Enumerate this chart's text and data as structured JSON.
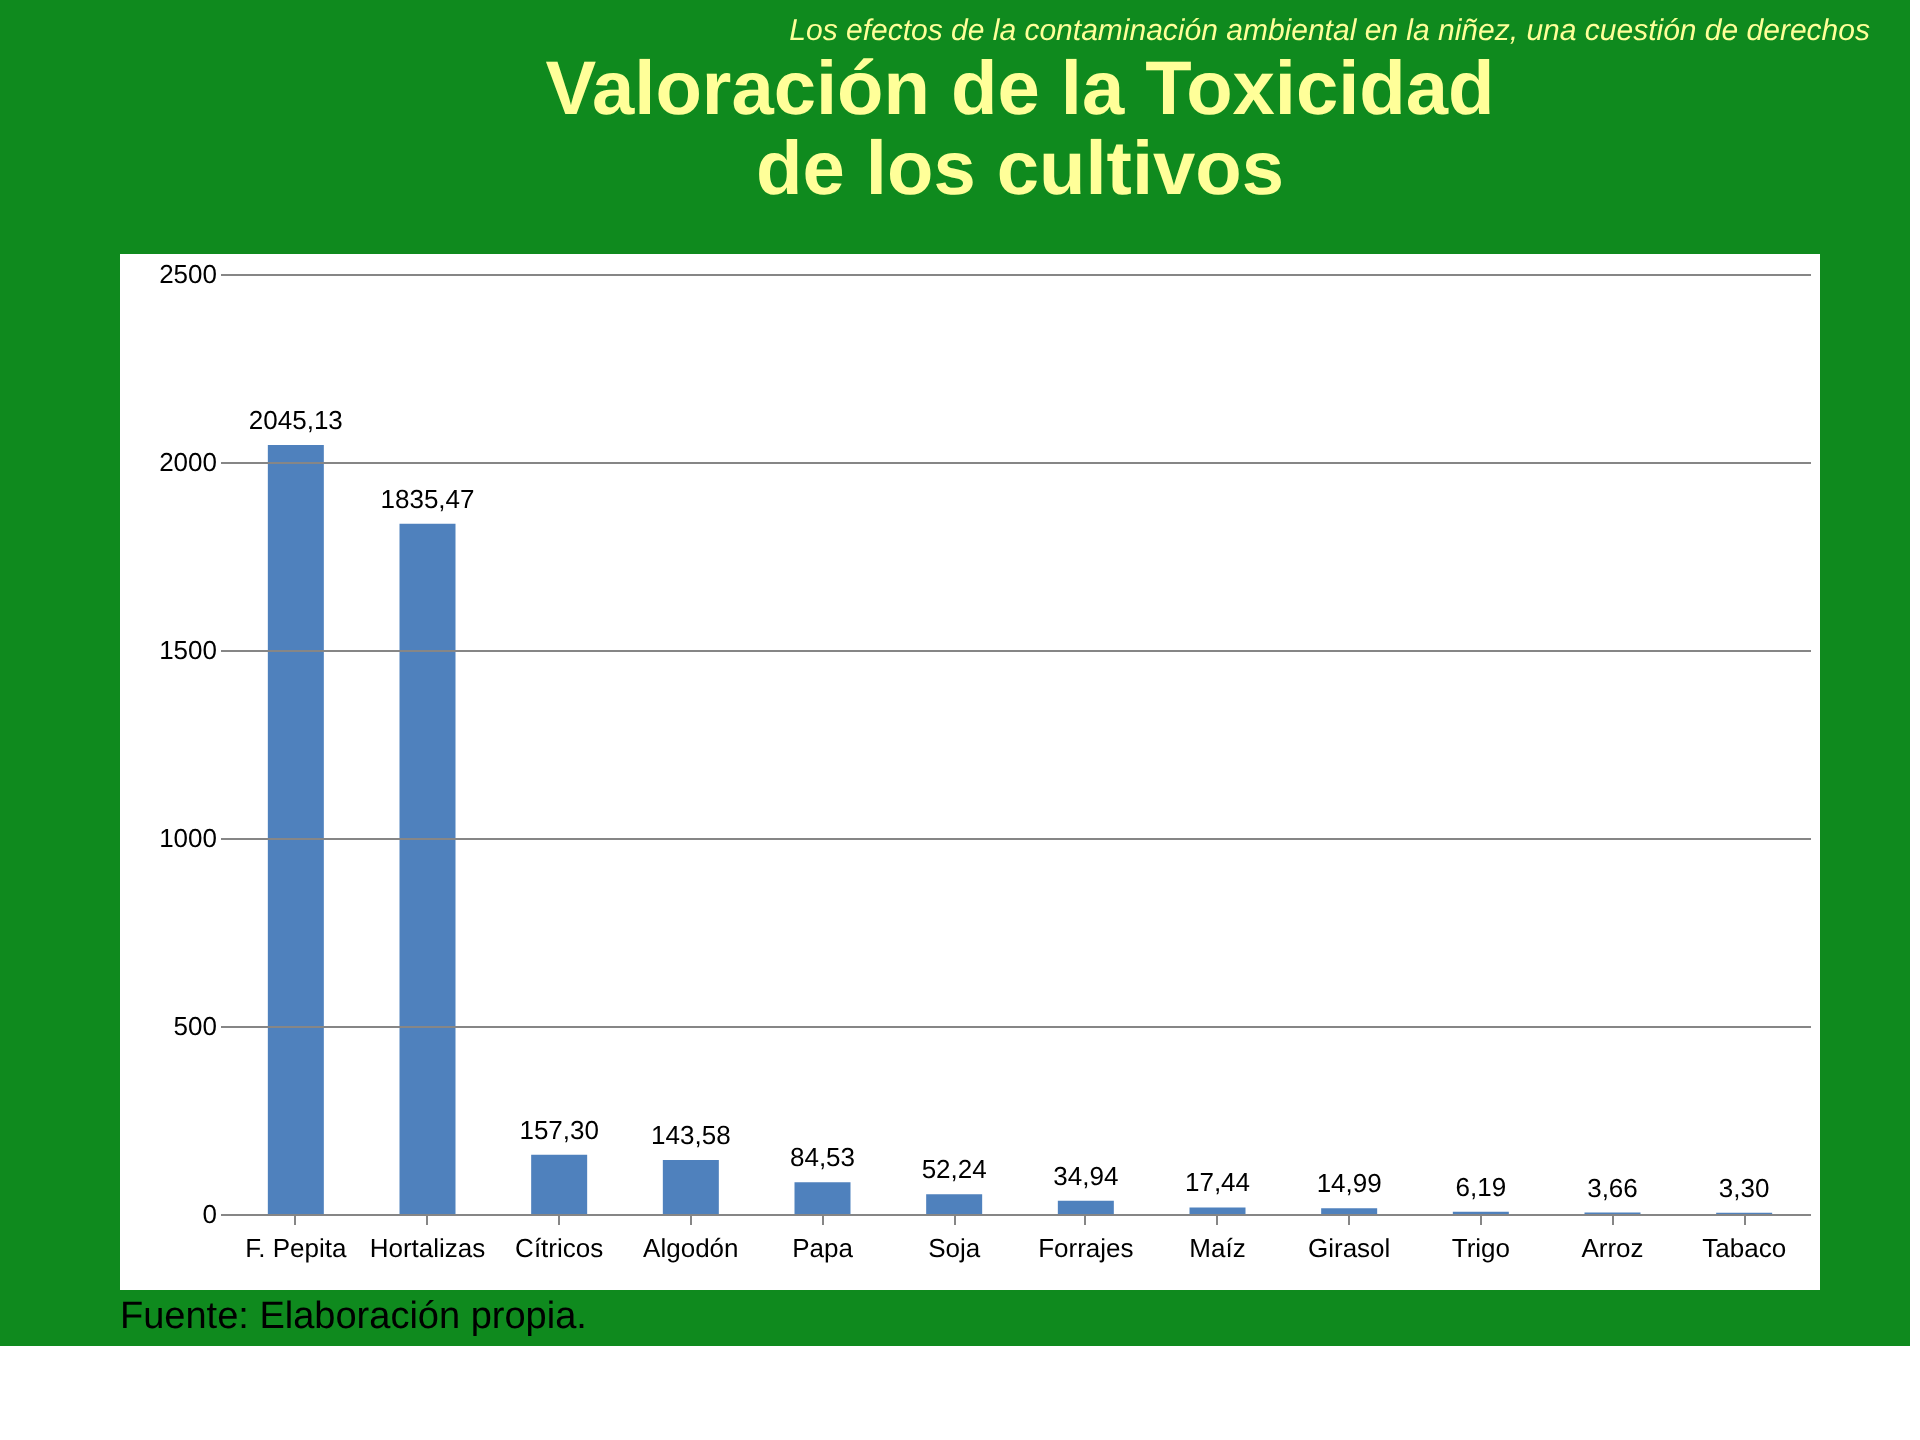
{
  "chart_data": {
    "type": "bar",
    "title": [
      "Valoración de la Toxicidad",
      "de los cultivos"
    ],
    "subtitle": "Los efectos de la contaminación ambiental en la niñez, una cuestión de derechos",
    "categories": [
      "F. Pepita",
      "Hortalizas",
      "Cítricos",
      "Algodón",
      "Papa",
      "Soja",
      "Forrajes",
      "Maíz",
      "Girasol",
      "Trigo",
      "Arroz",
      "Tabaco"
    ],
    "values": [
      2045.13,
      1835.47,
      157.3,
      143.58,
      84.53,
      52.24,
      34.94,
      17.44,
      14.99,
      6.19,
      3.66,
      3.3
    ],
    "value_labels": [
      "2045,13",
      "1835,47",
      "157,30",
      "143,58",
      "84,53",
      "52,24",
      "34,94",
      "17,44",
      "14,99",
      "6,19",
      "3,66",
      "3,30"
    ],
    "color": "#4f81bd",
    "ylim": [
      0,
      2500
    ],
    "yticks": [
      0,
      500,
      1000,
      1500,
      2000,
      2500
    ],
    "grid": "y",
    "annotations": [
      "Fuente: Elaboración propia."
    ]
  }
}
